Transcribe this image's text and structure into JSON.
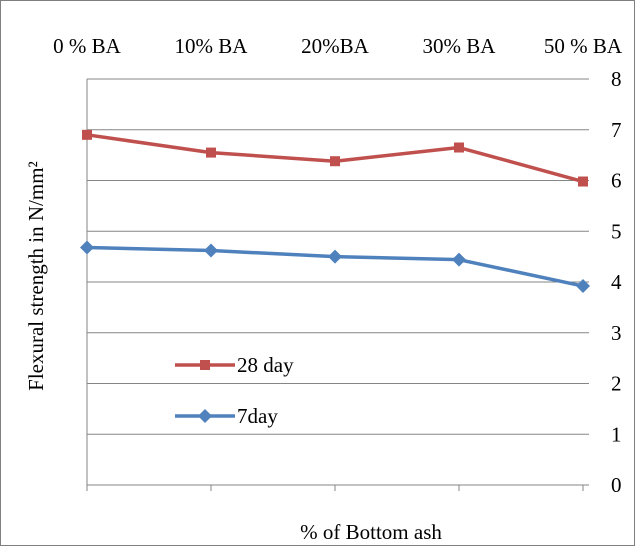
{
  "chart_data": {
    "type": "line",
    "categories": [
      "0 % BA",
      "10% BA",
      "20%BA",
      "30% BA",
      "50 % BA"
    ],
    "series": [
      {
        "name": "28 day",
        "color": "#c0504d",
        "marker": "square",
        "values": [
          6.9,
          6.55,
          6.38,
          6.65,
          5.98
        ]
      },
      {
        "name": "7day",
        "color": "#4f81bd",
        "marker": "diamond",
        "values": [
          4.68,
          4.62,
          4.5,
          4.44,
          3.92
        ]
      }
    ],
    "title": "",
    "xlabel": "% of Bottom ash",
    "ylabel": "Flexural strength in N/mm²",
    "ylim": [
      0,
      8
    ],
    "yticks": [
      0,
      1,
      2,
      3,
      4,
      5,
      6,
      7,
      8
    ],
    "y_axis_side": "right",
    "x_tick_labels_position": "top",
    "grid": "horizontal",
    "legend_position": "center-left"
  }
}
